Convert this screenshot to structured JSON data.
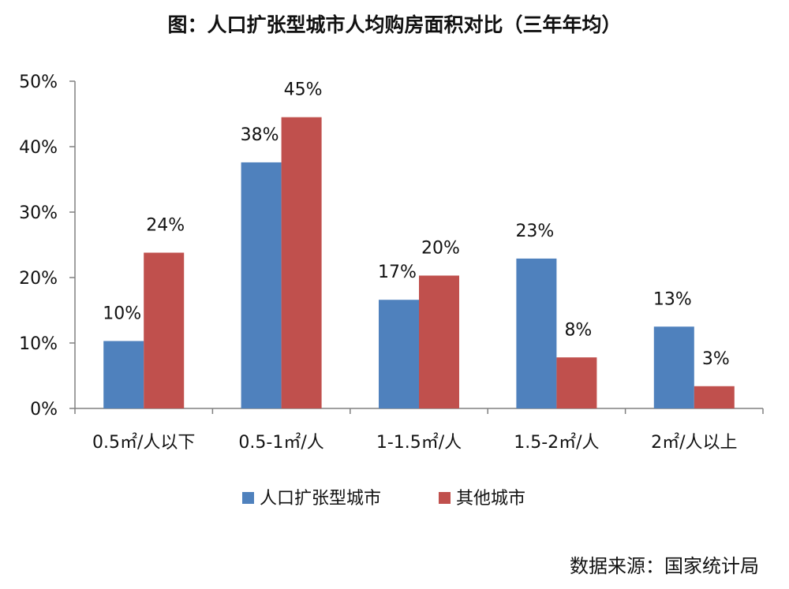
{
  "title": "图：人口扩张型城市人均购房面积对比（三年年均）",
  "source": "数据来源：国家统计局",
  "colors": {
    "series1": "#4f81bd",
    "series2": "#c0504d",
    "axis": "#808080"
  },
  "chart_data": {
    "type": "bar",
    "title": "图：人口扩张型城市人均购房面积对比（三年年均）",
    "categories": [
      "0.5㎡/人以下",
      "0.5-1㎡/人",
      "1-1.5㎡/人",
      "1.5-2㎡/人",
      "2㎡/人以上"
    ],
    "series": [
      {
        "name": "人口扩张型城市",
        "values": [
          10.3,
          37.6,
          16.6,
          22.9,
          12.5
        ],
        "labels": [
          "10%",
          "38%",
          "17%",
          "23%",
          "13%"
        ]
      },
      {
        "name": "其他城市",
        "values": [
          23.8,
          44.5,
          20.3,
          7.8,
          3.4
        ],
        "labels": [
          "24%",
          "45%",
          "20%",
          "8%",
          "3%"
        ]
      }
    ],
    "ylim": [
      0,
      50
    ],
    "yticks": [
      "0%",
      "10%",
      "20%",
      "30%",
      "40%",
      "50%"
    ],
    "grid": false,
    "legend": "bottom"
  }
}
